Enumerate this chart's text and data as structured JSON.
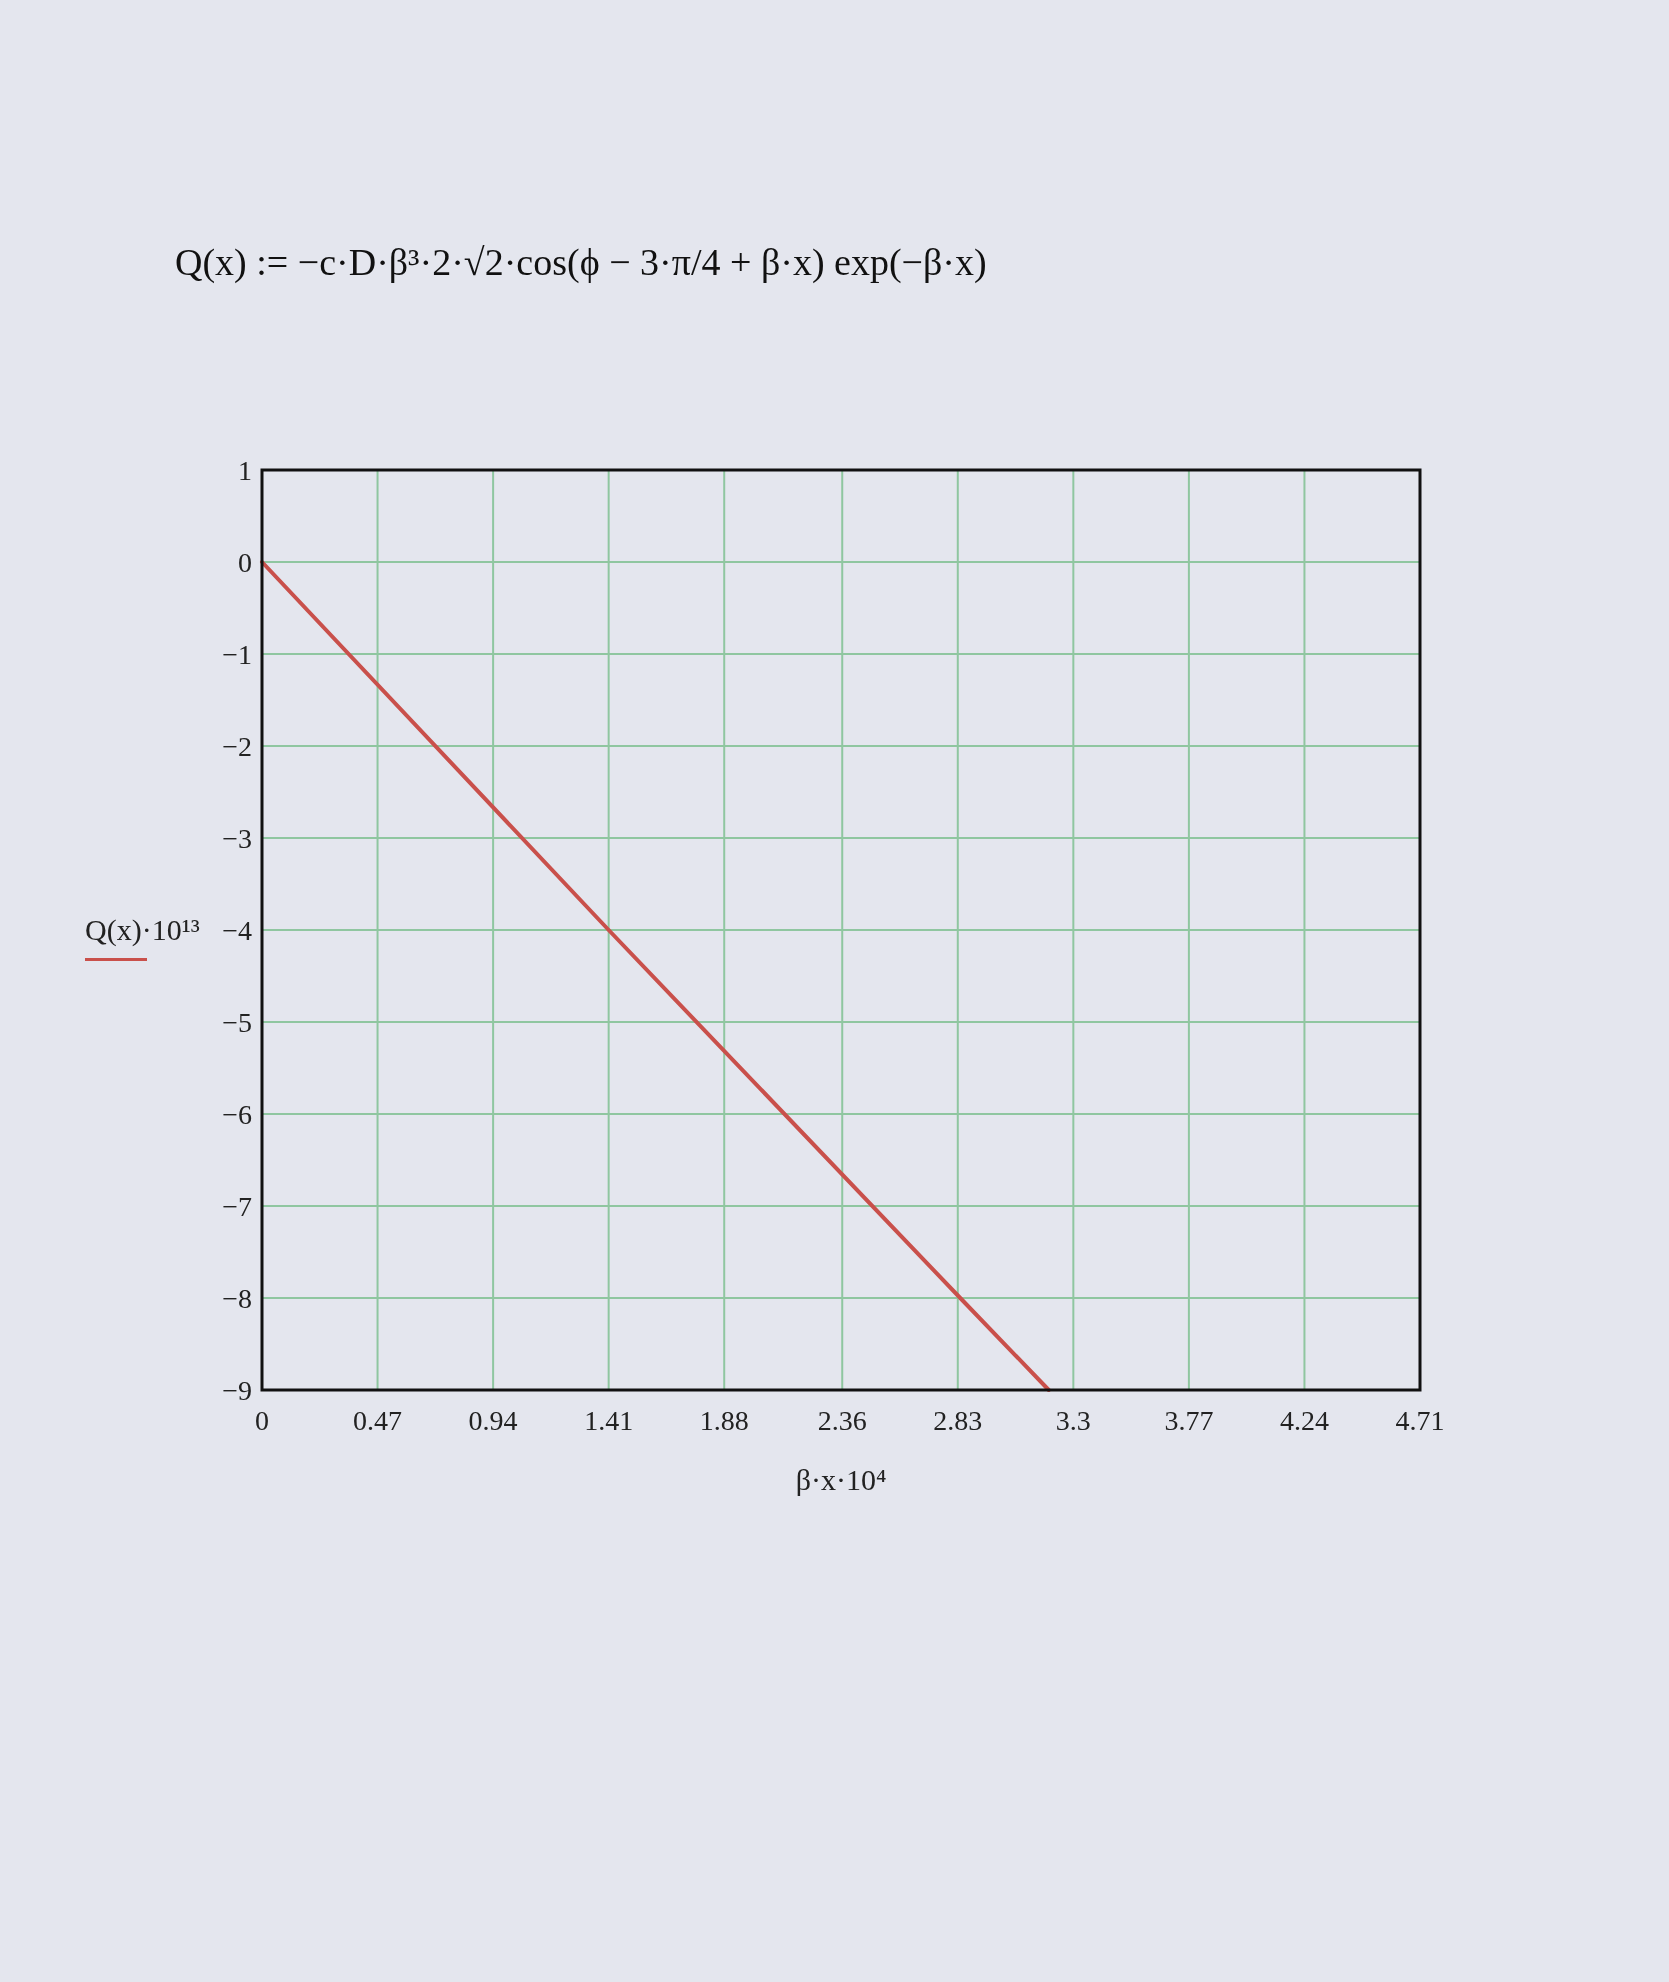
{
  "chart_data": {
    "type": "line",
    "title": "Q(x) := −c·D·β³·2·√2·cos(ϕ − 3·π/4 + β·x) exp(−β·x)",
    "xlabel": "β·x·10⁴",
    "ylabel": "Q(x)·10¹³",
    "x": [
      0,
      1.41,
      2.84,
      3.2
    ],
    "series": [
      {
        "color": "#c9504b",
        "values": [
          0,
          -4,
          -8,
          -9
        ]
      }
    ],
    "xlim": [
      0,
      4.71
    ],
    "ylim": [
      -9,
      1
    ],
    "xticks": [
      0,
      0.47,
      0.94,
      1.41,
      1.88,
      2.36,
      2.83,
      3.3,
      3.77,
      4.24,
      4.71
    ],
    "yticks": [
      1,
      0,
      -1,
      -2,
      -3,
      -4,
      -5,
      -6,
      -7,
      -8,
      -9
    ],
    "grid": true,
    "line_style": "solid"
  }
}
